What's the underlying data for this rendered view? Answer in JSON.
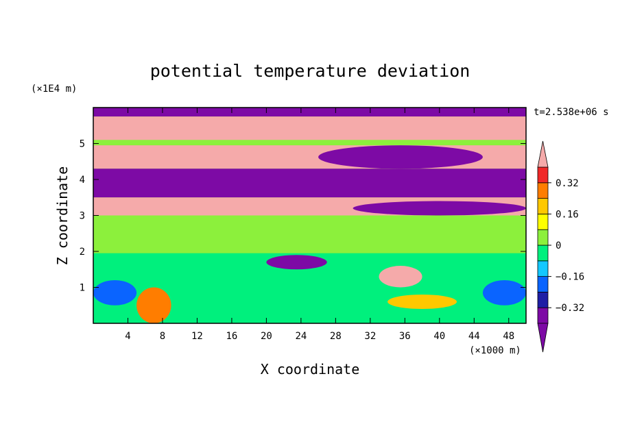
{
  "chart_data": {
    "type": "heatmap",
    "title": "potential temperature deviation",
    "xlabel": "X coordinate",
    "ylabel": "Z coordinate",
    "x_unit": "(×1000 m)",
    "y_unit": "(×1E4 m)",
    "time_label": "t=2.538e+06 s",
    "xlim": [
      0,
      50
    ],
    "ylim": [
      0,
      6
    ],
    "x_ticks": [
      4,
      8,
      12,
      16,
      20,
      24,
      28,
      32,
      36,
      40,
      44,
      48
    ],
    "y_ticks": [
      1,
      2,
      3,
      4,
      5
    ],
    "grid": false,
    "colorbar": {
      "placement": "right",
      "extend": "both",
      "levels": [
        -0.4,
        -0.32,
        -0.24,
        -0.16,
        -0.08,
        0,
        0.08,
        0.16,
        0.24,
        0.32,
        0.4
      ],
      "colors": [
        "#7d0aa5",
        "#1e1ea5",
        "#0a64ff",
        "#14c8ff",
        "#00f07d",
        "#8cf03c",
        "#ffff00",
        "#ffc800",
        "#ff7d00",
        "#f02828"
      ],
      "under_color": "#7d0aa5",
      "over_color": "#f5aaaa",
      "tick_labels": [
        "0.32",
        "0.16",
        "0",
        "−0.16",
        "−0.32"
      ],
      "tick_values": [
        0.32,
        0.16,
        0,
        -0.16,
        -0.32
      ]
    },
    "bands": [
      {
        "z": [
          5.75,
          6.0
        ],
        "value": -0.5
      },
      {
        "z": [
          5.1,
          5.75
        ],
        "value": 0.5
      },
      {
        "z": [
          4.3,
          4.95
        ],
        "value": 0.5
      },
      {
        "z": [
          3.5,
          4.3
        ],
        "value": -0.5
      },
      {
        "z": [
          3.0,
          3.5
        ],
        "value": 0.5
      },
      {
        "z": [
          2.0,
          3.0
        ],
        "value": 0.05
      },
      {
        "z": [
          0.0,
          1.95
        ],
        "value": -0.05
      }
    ],
    "features": [
      {
        "x": [
          20,
          50
        ],
        "z": [
          5.4,
          5.75
        ],
        "value": 0.5
      },
      {
        "x": [
          26,
          45
        ],
        "z": [
          4.3,
          4.95
        ],
        "value": -0.5
      },
      {
        "x": [
          30,
          50
        ],
        "z": [
          3.0,
          3.4
        ],
        "value": -0.5
      },
      {
        "x": [
          33,
          38
        ],
        "z": [
          1.0,
          1.6
        ],
        "value": 0.5
      },
      {
        "x": [
          20,
          27
        ],
        "z": [
          1.5,
          1.9
        ],
        "value": -0.5
      },
      {
        "x": [
          0,
          5
        ],
        "z": [
          0.5,
          1.2
        ],
        "value": -0.2
      },
      {
        "x": [
          45,
          50
        ],
        "z": [
          0.5,
          1.2
        ],
        "value": -0.2
      },
      {
        "x": [
          5,
          9
        ],
        "z": [
          0.0,
          1.0
        ],
        "value": 0.25
      },
      {
        "x": [
          34,
          42
        ],
        "z": [
          0.4,
          0.8
        ],
        "value": 0.2
      }
    ]
  }
}
